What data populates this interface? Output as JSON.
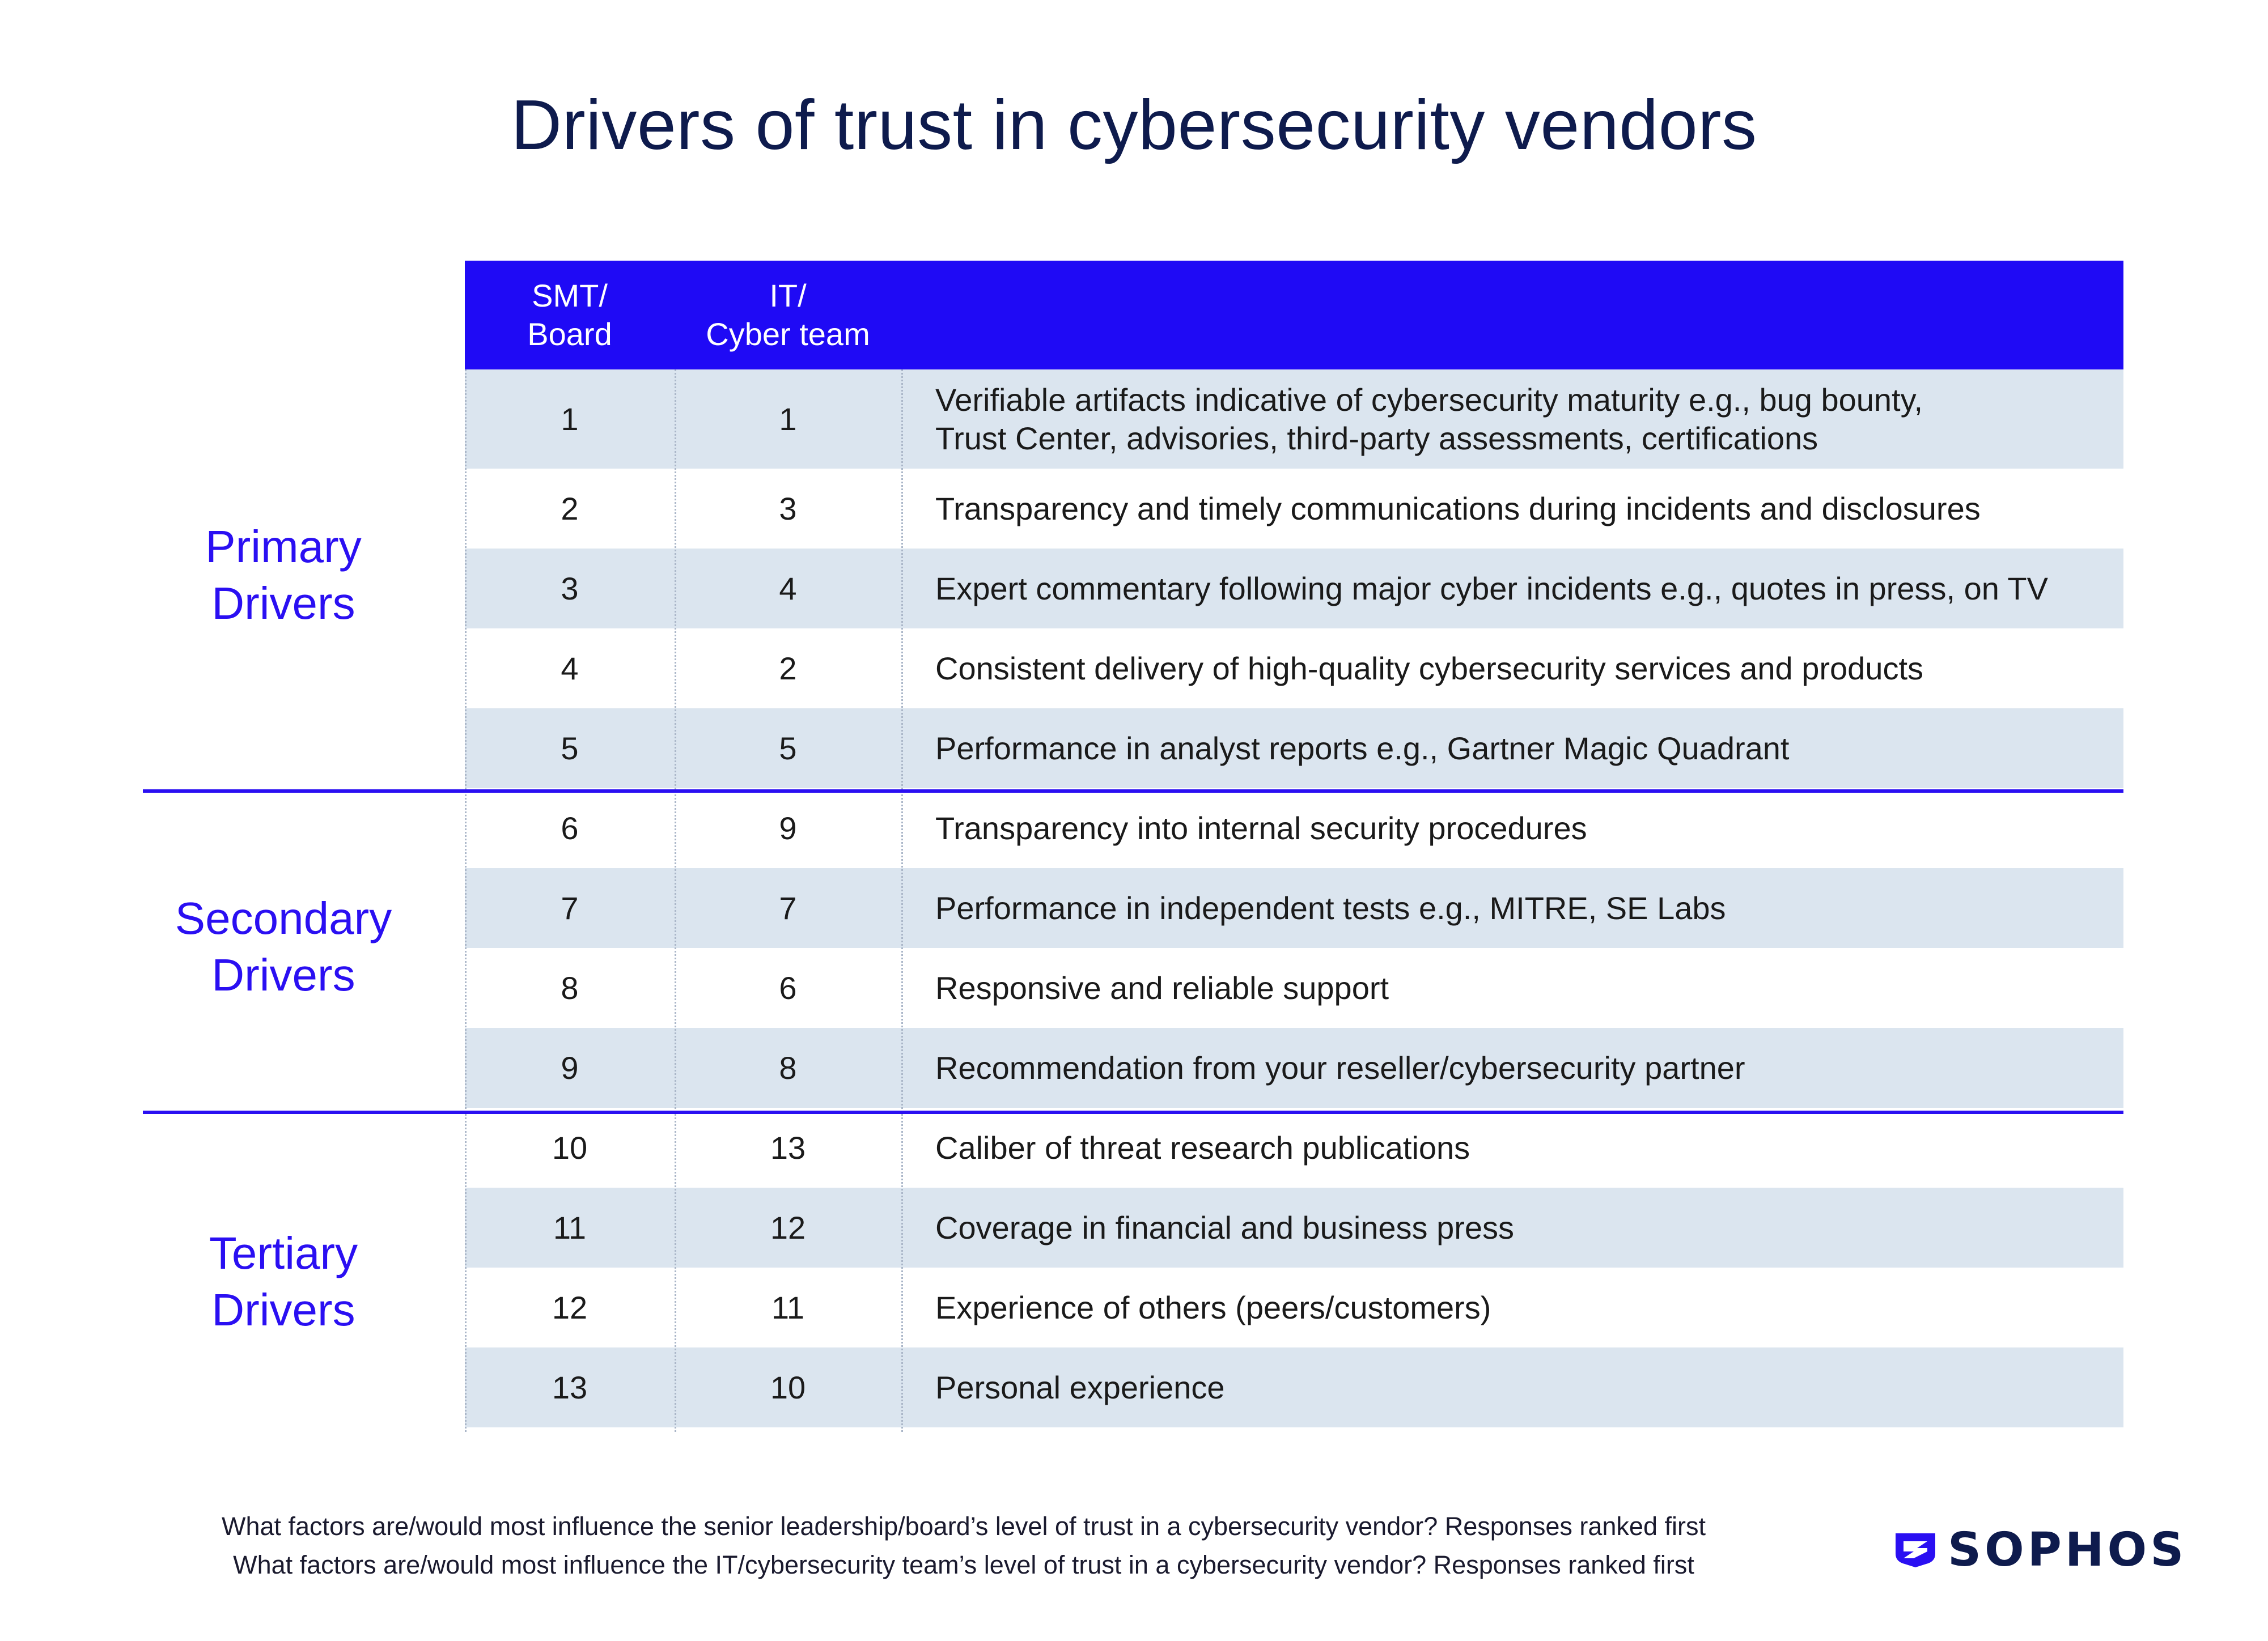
{
  "title": "Drivers of trust in cybersecurity vendors",
  "colors": {
    "header_bg": "#1f0af5",
    "accent": "#2a0ff2",
    "row_shade": "#dbe5ef",
    "title": "#0e1b4d"
  },
  "chart_data": {
    "type": "table",
    "columns": [
      "SMT/ Board",
      "IT/ Cyber team",
      ""
    ],
    "header": {
      "col1_line1": "SMT/",
      "col1_line2": "Board",
      "col2_line1": "IT/",
      "col2_line2": "Cyber team"
    },
    "groups": [
      {
        "label_line1": "Primary",
        "label_line2": "Drivers"
      },
      {
        "label_line1": "Secondary",
        "label_line2": "Drivers"
      },
      {
        "label_line1": "Tertiary",
        "label_line2": "Drivers"
      }
    ],
    "rows": [
      {
        "smt": "1",
        "it": "1",
        "desc_line1": "Verifiable artifacts indicative of cybersecurity maturity e.g., bug bounty,",
        "desc_line2": "Trust Center, advisories, third-party assessments, certifications"
      },
      {
        "smt": "2",
        "it": "3",
        "desc_line1": "Transparency and timely communications during incidents and disclosures",
        "desc_line2": ""
      },
      {
        "smt": "3",
        "it": "4",
        "desc_line1": "Expert commentary following major cyber incidents e.g., quotes in press, on TV",
        "desc_line2": ""
      },
      {
        "smt": "4",
        "it": "2",
        "desc_line1": "Consistent delivery of high-quality cybersecurity services and products",
        "desc_line2": ""
      },
      {
        "smt": "5",
        "it": "5",
        "desc_line1": "Performance in analyst reports e.g., Gartner Magic Quadrant",
        "desc_line2": ""
      },
      {
        "smt": "6",
        "it": "9",
        "desc_line1": "Transparency into internal security procedures",
        "desc_line2": ""
      },
      {
        "smt": "7",
        "it": "7",
        "desc_line1": "Performance in independent tests e.g., MITRE, SE Labs",
        "desc_line2": ""
      },
      {
        "smt": "8",
        "it": "6",
        "desc_line1": "Responsive and reliable support",
        "desc_line2": ""
      },
      {
        "smt": "9",
        "it": "8",
        "desc_line1": "Recommendation from your reseller/cybersecurity partner",
        "desc_line2": ""
      },
      {
        "smt": "10",
        "it": "13",
        "desc_line1": "Caliber of threat research publications",
        "desc_line2": ""
      },
      {
        "smt": "11",
        "it": "12",
        "desc_line1": "Coverage in financial and business press",
        "desc_line2": ""
      },
      {
        "smt": "12",
        "it": "11",
        "desc_line1": "Experience of others (peers/customers)",
        "desc_line2": ""
      },
      {
        "smt": "13",
        "it": "10",
        "desc_line1": "Personal experience",
        "desc_line2": ""
      }
    ]
  },
  "footnotes": {
    "line1": "What factors are/would most influence the senior leadership/board’s level of trust in a cybersecurity vendor? Responses ranked first",
    "line2": "What factors are/would most influence the IT/cybersecurity team’s level of trust in a cybersecurity vendor? Responses ranked first"
  },
  "logo": {
    "text": "SOPHOS",
    "icon": "sophos-shield-icon"
  }
}
